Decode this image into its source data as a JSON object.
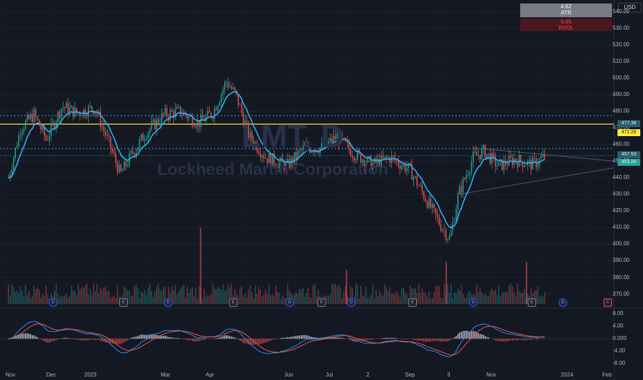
{
  "currency": "USD",
  "watermark": {
    "symbol": "LMT, D",
    "name": "Lockheed Martin Corporation"
  },
  "indicators": {
    "atr": {
      "value": "4.62",
      "label": "ATR"
    },
    "rvol": {
      "value": "0.65",
      "label": "RVOL"
    }
  },
  "price_axis": [
    "540.00",
    "530.00",
    "520.00",
    "510.00",
    "500.00",
    "490.00",
    "480.00",
    "470.00",
    "460.00",
    "450.00",
    "440.00",
    "430.00",
    "420.00",
    "410.00",
    "400.00",
    "390.00",
    "380.00",
    "370.00"
  ],
  "price_tags": {
    "level_high": "477.38",
    "level_yellow": "472.28",
    "level_mid": "457.53",
    "last_price": "453.24"
  },
  "macd_axis": [
    "8.00",
    "4.00",
    "0.000",
    "-4.00",
    "-8.00"
  ],
  "time_axis": [
    "Nov",
    "Dec",
    "2023",
    "Mar",
    "Apr",
    "Jun",
    "Jul",
    "2",
    "Sep",
    "3",
    "Nov",
    "2024",
    "Feb"
  ],
  "event_markers": [
    "D",
    "E",
    "D",
    "E",
    "D",
    "E",
    "D",
    "E",
    "D",
    "E",
    "D",
    "E"
  ],
  "colors": {
    "background": "#141823",
    "up": "#ef5350",
    "down": "#26a69a",
    "ma": "#29b6f6",
    "yellow_level": "#ffeb3b",
    "macd": "#2196f3",
    "signal": "#ff5252"
  },
  "chart_data": {
    "type": "candlestick",
    "ylim": [
      364,
      547
    ],
    "levels": [
      477.38,
      472.28,
      457.53,
      453.24
    ],
    "price_path": [
      {
        "t": "2022-10-15",
        "close": 440
      },
      {
        "t": "2022-10-25",
        "close": 470
      },
      {
        "t": "2022-11-05",
        "close": 478
      },
      {
        "t": "2022-11-15",
        "close": 463
      },
      {
        "t": "2022-11-28",
        "close": 483
      },
      {
        "t": "2022-12-10",
        "close": 479
      },
      {
        "t": "2022-12-25",
        "close": 482
      },
      {
        "t": "2023-01-05",
        "close": 462
      },
      {
        "t": "2023-01-15",
        "close": 442
      },
      {
        "t": "2023-01-25",
        "close": 455
      },
      {
        "t": "2023-02-05",
        "close": 467
      },
      {
        "t": "2023-02-20",
        "close": 478
      },
      {
        "t": "2023-03-05",
        "close": 480
      },
      {
        "t": "2023-03-20",
        "close": 473
      },
      {
        "t": "2023-04-01",
        "close": 479
      },
      {
        "t": "2023-04-12",
        "close": 498
      },
      {
        "t": "2023-04-20",
        "close": 490
      },
      {
        "t": "2023-05-01",
        "close": 465
      },
      {
        "t": "2023-05-15",
        "close": 452
      },
      {
        "t": "2023-06-01",
        "close": 447
      },
      {
        "t": "2023-06-15",
        "close": 458
      },
      {
        "t": "2023-07-01",
        "close": 458
      },
      {
        "t": "2023-07-12",
        "close": 465
      },
      {
        "t": "2023-07-25",
        "close": 455
      },
      {
        "t": "2023-08-10",
        "close": 448
      },
      {
        "t": "2023-08-25",
        "close": 452
      },
      {
        "t": "2023-09-10",
        "close": 445
      },
      {
        "t": "2023-09-25",
        "close": 425
      },
      {
        "t": "2023-10-05",
        "close": 412
      },
      {
        "t": "2023-10-13",
        "close": 403
      },
      {
        "t": "2023-10-20",
        "close": 430
      },
      {
        "t": "2023-11-01",
        "close": 452
      },
      {
        "t": "2023-11-10",
        "close": 456
      },
      {
        "t": "2023-11-22",
        "close": 447
      },
      {
        "t": "2023-12-05",
        "close": 451
      },
      {
        "t": "2023-12-20",
        "close": 448
      },
      {
        "t": "2023-12-31",
        "close": 453
      }
    ],
    "volume_spikes": [
      {
        "t": "2023-03-22",
        "rel": 1.0
      },
      {
        "t": "2023-10-10",
        "rel": 0.55
      },
      {
        "t": "2023-12-15",
        "rel": 0.55
      },
      {
        "t": "2023-07-20",
        "rel": 0.45
      }
    ],
    "macd_ylim": [
      -10,
      9
    ]
  }
}
